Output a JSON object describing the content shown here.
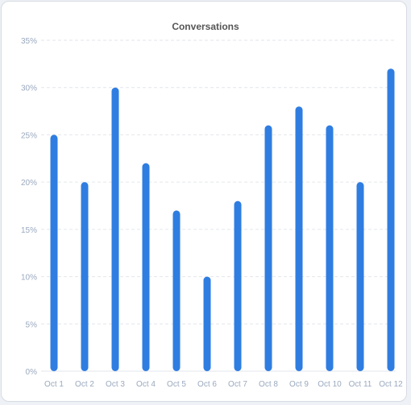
{
  "chart_data": {
    "type": "bar",
    "title": "Conversations",
    "categories": [
      "Oct 1",
      "Oct 2",
      "Oct 3",
      "Oct 4",
      "Oct 5",
      "Oct 6",
      "Oct 7",
      "Oct 8",
      "Oct 9",
      "Oct 10",
      "Oct 11",
      "Oct 12"
    ],
    "values": [
      25,
      20,
      30,
      22,
      17,
      10,
      18,
      26,
      28,
      26,
      20,
      32
    ],
    "ylim": [
      0,
      35
    ],
    "yticks": [
      "0%",
      "5%",
      "10%",
      "15%",
      "20%",
      "25%",
      "30%",
      "35%"
    ],
    "grid": true,
    "bar_color": "#2f7de1",
    "grid_color": "#e3e6ec",
    "axis_label_color": "#9aa9bf"
  }
}
